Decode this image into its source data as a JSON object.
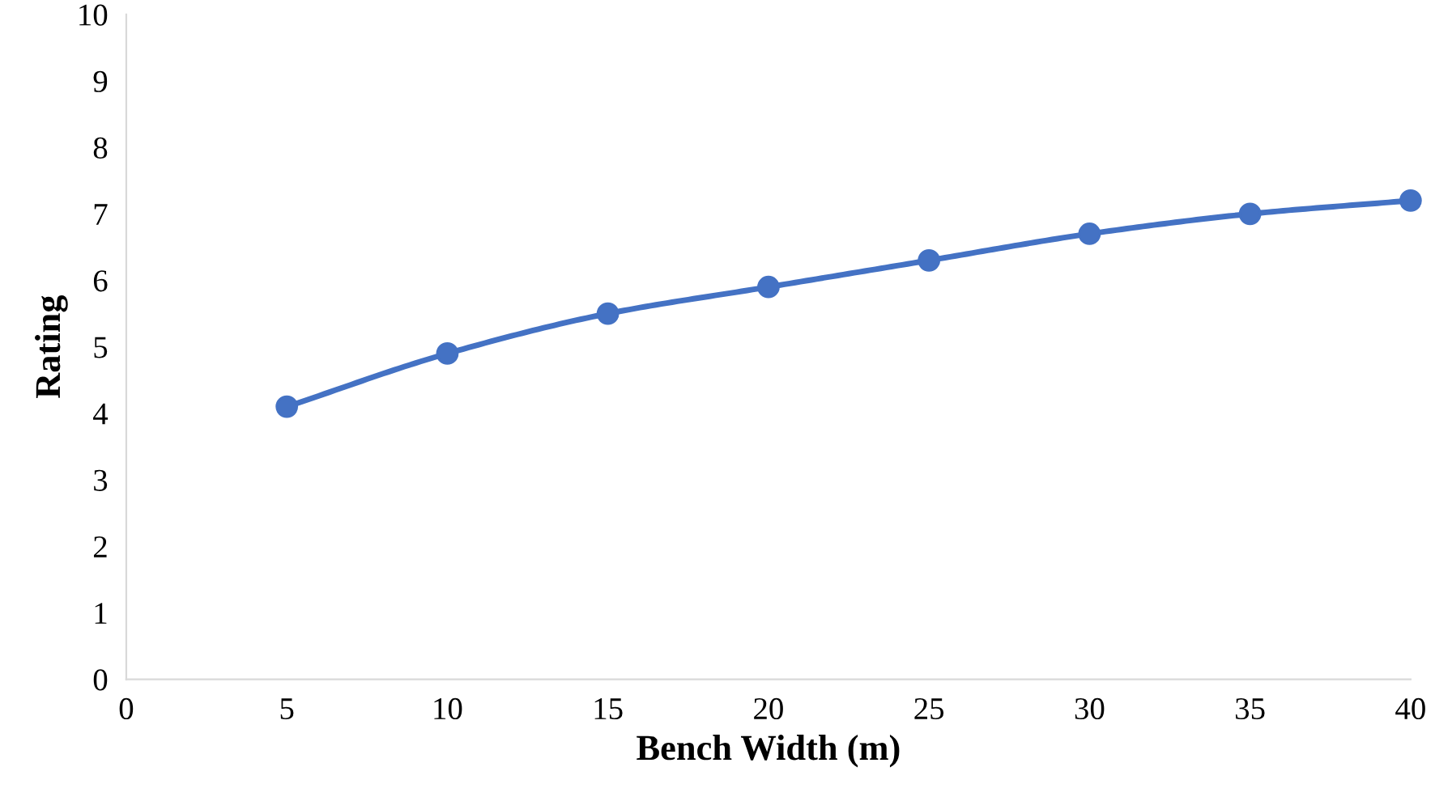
{
  "chart_data": {
    "type": "line",
    "xlabel": "Bench Width (m)",
    "ylabel": "Rating",
    "x": [
      5,
      10,
      15,
      20,
      25,
      30,
      35,
      40
    ],
    "series": [
      {
        "color": "#4472c4",
        "values": [
          4.1,
          4.9,
          5.5,
          5.9,
          6.3,
          6.7,
          7.0,
          7.2
        ]
      }
    ],
    "xlim": [
      0,
      40
    ],
    "ylim": [
      0,
      10
    ],
    "xticks": [
      0,
      5,
      10,
      15,
      20,
      25,
      30,
      35,
      40
    ],
    "yticks": [
      0,
      1,
      2,
      3,
      4,
      5,
      6,
      7,
      8,
      9,
      10
    ],
    "grid": false,
    "marker": "circle",
    "line_style": "solid"
  }
}
